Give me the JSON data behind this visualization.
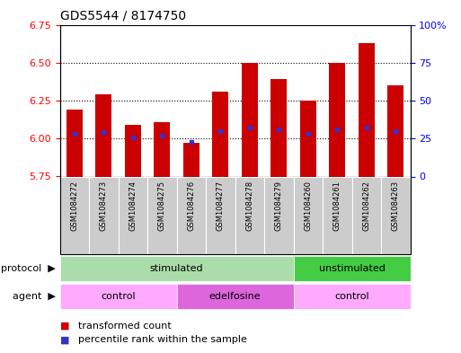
{
  "title": "GDS5544 / 8174750",
  "samples": [
    "GSM1084272",
    "GSM1084273",
    "GSM1084274",
    "GSM1084275",
    "GSM1084276",
    "GSM1084277",
    "GSM1084278",
    "GSM1084279",
    "GSM1084260",
    "GSM1084261",
    "GSM1084262",
    "GSM1084263"
  ],
  "bar_tops": [
    6.19,
    6.29,
    6.09,
    6.11,
    5.97,
    6.31,
    6.5,
    6.39,
    6.25,
    6.5,
    6.63,
    6.35
  ],
  "blue_markers": [
    6.03,
    6.04,
    6.01,
    6.02,
    5.975,
    6.05,
    6.07,
    6.06,
    6.03,
    6.06,
    6.07,
    6.05
  ],
  "bar_bottom": 5.75,
  "ylim_left": [
    5.75,
    6.75
  ],
  "ylim_right": [
    0,
    100
  ],
  "yticks_left": [
    5.75,
    6.0,
    6.25,
    6.5,
    6.75
  ],
  "yticks_right": [
    0,
    25,
    50,
    75,
    100
  ],
  "ytick_labels_right": [
    "100%",
    "75",
    "50",
    "25",
    "0"
  ],
  "bar_color": "#CC0000",
  "blue_color": "#3333CC",
  "protocol_stimulated_color": "#AADDAA",
  "protocol_unstimulated_color": "#44CC44",
  "agent_control_color": "#FFAAFF",
  "agent_edelfosine_color": "#DD66DD",
  "sample_bg_color": "#CCCCCC",
  "protocol_labels": [
    {
      "label": "stimulated",
      "start": 0,
      "end": 8
    },
    {
      "label": "unstimulated",
      "start": 8,
      "end": 12
    }
  ],
  "agent_labels": [
    {
      "label": "control",
      "start": 0,
      "end": 4
    },
    {
      "label": "edelfosine",
      "start": 4,
      "end": 8
    },
    {
      "label": "control",
      "start": 8,
      "end": 12
    }
  ],
  "legend_red_label": "transformed count",
  "legend_blue_label": "percentile rank within the sample",
  "title_fontsize": 10,
  "tick_fontsize": 8,
  "bar_width": 0.55
}
